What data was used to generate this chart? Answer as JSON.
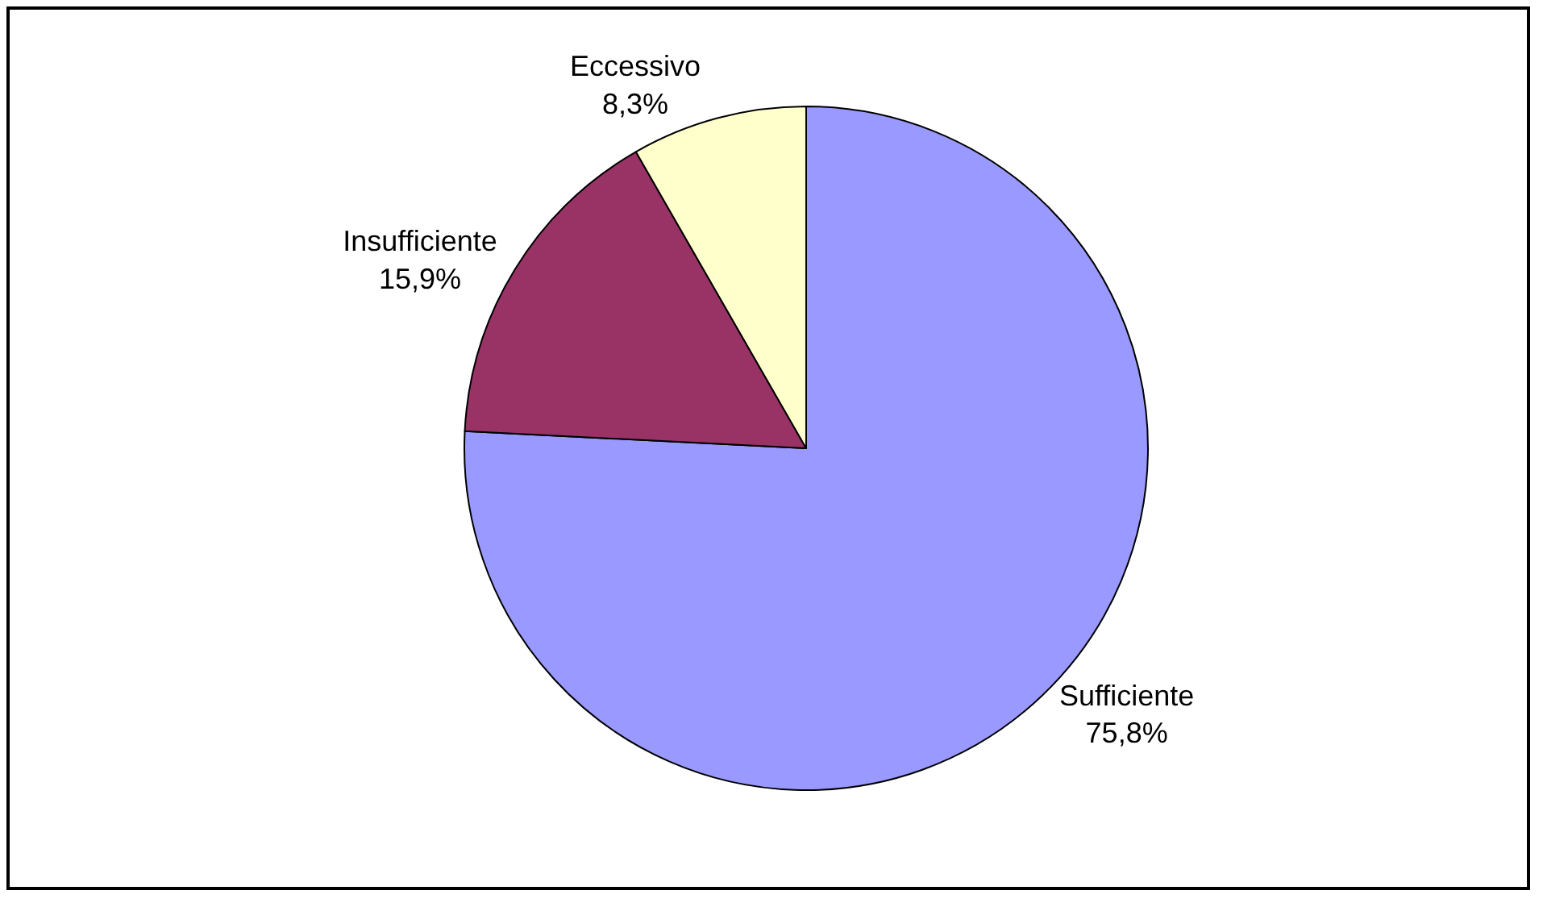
{
  "chart_data": {
    "type": "pie",
    "categories": [
      "Sufficiente",
      "Insufficiente",
      "Eccessivo"
    ],
    "values": [
      75.8,
      15.9,
      8.3
    ],
    "value_labels": [
      "75,8%",
      "15,9%",
      "8,3%"
    ],
    "colors": [
      "#9999ff",
      "#993366",
      "#ffffcc"
    ],
    "legend": false
  }
}
